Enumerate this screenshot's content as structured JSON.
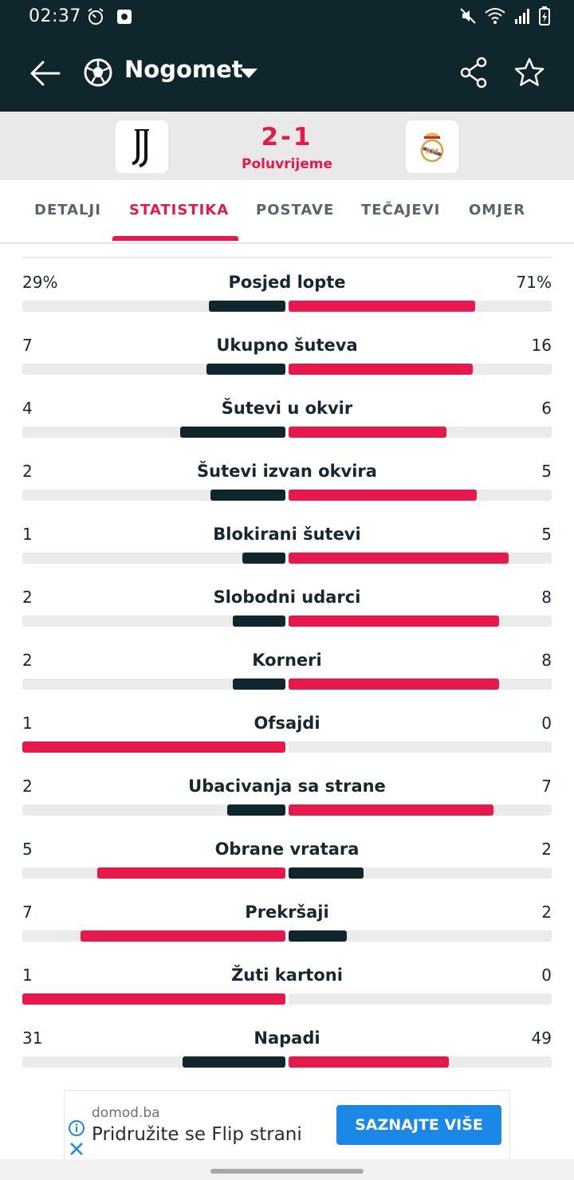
{
  "status_bar": {
    "time": "02:37"
  },
  "app_bar": {
    "title": "Nogomet"
  },
  "match": {
    "score": "2-1",
    "status": "Poluvrijeme",
    "home_team": "Juventus",
    "away_team": "Real Madrid"
  },
  "tabs": [
    {
      "label": "DETALJI",
      "active": false
    },
    {
      "label": "STATISTIKA",
      "active": true
    },
    {
      "label": "POSTAVE",
      "active": false
    },
    {
      "label": "TEČAJEVI",
      "active": false
    },
    {
      "label": "OMJER",
      "active": false
    }
  ],
  "colors": {
    "header": "#10262d",
    "accent": "#e8184d",
    "track": "#ebebeb",
    "ad_button": "#1b87e6"
  },
  "stats": [
    {
      "label": "Posjed lopte",
      "home": "29%",
      "away": "71%",
      "home_fill": 0.29,
      "away_fill": 0.71
    },
    {
      "label": "Ukupno šuteva",
      "home": "7",
      "away": "16",
      "home_fill": 0.3,
      "away_fill": 0.7
    },
    {
      "label": "Šutevi u okvir",
      "home": "4",
      "away": "6",
      "home_fill": 0.4,
      "away_fill": 0.6
    },
    {
      "label": "Šutevi izvan okvira",
      "home": "2",
      "away": "5",
      "home_fill": 0.285,
      "away_fill": 0.715
    },
    {
      "label": "Blokirani šutevi",
      "home": "1",
      "away": "5",
      "home_fill": 0.165,
      "away_fill": 0.835
    },
    {
      "label": "Slobodni udarci",
      "home": "2",
      "away": "8",
      "home_fill": 0.2,
      "away_fill": 0.8
    },
    {
      "label": "Korneri",
      "home": "2",
      "away": "8",
      "home_fill": 0.2,
      "away_fill": 0.8
    },
    {
      "label": "Ofsajdi",
      "home": "1",
      "away": "0",
      "home_fill": 1.0,
      "away_fill": 0.0
    },
    {
      "label": "Ubacivanja sa strane",
      "home": "2",
      "away": "7",
      "home_fill": 0.22,
      "away_fill": 0.78
    },
    {
      "label": "Obrane vratara",
      "home": "5",
      "away": "2",
      "home_fill": 0.715,
      "away_fill": 0.285
    },
    {
      "label": "Prekršaji",
      "home": "7",
      "away": "2",
      "home_fill": 0.78,
      "away_fill": 0.22
    },
    {
      "label": "Žuti kartoni",
      "home": "1",
      "away": "0",
      "home_fill": 1.0,
      "away_fill": 0.0
    },
    {
      "label": "Napadi",
      "home": "31",
      "away": "49",
      "home_fill": 0.39,
      "away_fill": 0.61
    }
  ],
  "ad": {
    "domain": "domod.ba",
    "text": "Pridružite se Flip strani",
    "button": "SAZNAJTE VIŠE"
  }
}
